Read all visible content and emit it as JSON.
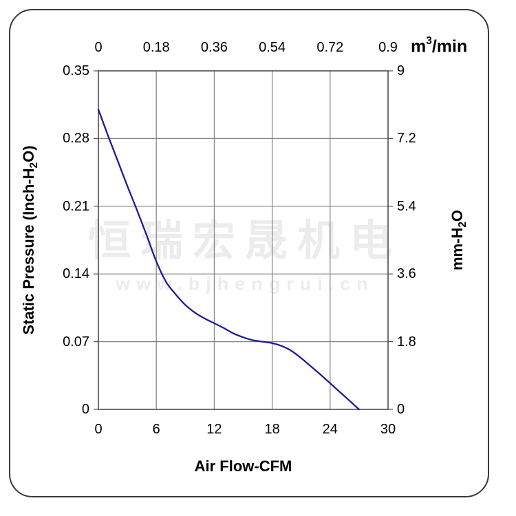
{
  "watermark": {
    "line1": "恒瑞宏晟机电",
    "line2": "www.bjhengrui.cn"
  },
  "axes": {
    "top": {
      "unit_prefix": "m",
      "unit_sup": "3",
      "unit_suffix": "/min",
      "ticks": [
        "0",
        "0.18",
        "0.36",
        "0.54",
        "0.72",
        "0.9"
      ]
    },
    "bottom": {
      "title": "Air Flow-CFM",
      "ticks": [
        "0",
        "6",
        "12",
        "18",
        "24",
        "30"
      ]
    },
    "left": {
      "title_main": "Static Pressure (Inch-H",
      "title_sub": "2",
      "title_end": "O)",
      "ticks": [
        "0.35",
        "0.28",
        "0.21",
        "0.14",
        "0.07",
        "0"
      ]
    },
    "right": {
      "title_main": "mm-H",
      "title_sub": "2",
      "title_end": "O",
      "ticks": [
        "9",
        "7.2",
        "5.4",
        "3.6",
        "1.8",
        "0"
      ]
    }
  },
  "colors": {
    "curve": "#1c1c94",
    "grid": "#808080",
    "plot_border": "#4d4d4d",
    "watermark": "#ececec",
    "text": "#000000"
  },
  "chart_data": {
    "type": "line",
    "title": "Fan performance curve (static pressure vs air flow)",
    "xlabel": "Air Flow-CFM",
    "x_top_label": "m³/min",
    "ylabel_left": "Static Pressure (Inch-H₂O)",
    "ylabel_right": "mm-H₂O",
    "xlim": [
      0,
      30
    ],
    "ylim_left": [
      0,
      0.35
    ],
    "ylim_right": [
      0,
      9
    ],
    "x_ticks_bottom": [
      0,
      6,
      12,
      18,
      24,
      30
    ],
    "x_ticks_top_m3min": [
      0,
      0.18,
      0.36,
      0.54,
      0.72,
      0.9
    ],
    "y_ticks_left_inch": [
      0,
      0.07,
      0.14,
      0.21,
      0.28,
      0.35
    ],
    "y_ticks_right_mm": [
      0,
      1.8,
      3.6,
      5.4,
      7.2,
      9
    ],
    "grid": true,
    "legend": false,
    "series": [
      {
        "name": "static-pressure-curve",
        "color": "#1c1c94",
        "x_cfm": [
          0,
          1,
          2,
          3,
          4,
          5,
          6,
          7,
          8,
          9,
          10,
          11,
          12,
          13,
          14,
          15,
          16,
          17,
          18,
          19,
          20,
          21,
          22,
          23,
          24,
          25,
          26,
          27
        ],
        "y_inch_h2o": [
          0.31,
          0.283,
          0.257,
          0.231,
          0.206,
          0.18,
          0.153,
          0.132,
          0.119,
          0.108,
          0.1,
          0.094,
          0.089,
          0.084,
          0.0785,
          0.0745,
          0.0715,
          0.07,
          0.0685,
          0.0655,
          0.0605,
          0.053,
          0.0445,
          0.036,
          0.027,
          0.018,
          0.009,
          0.0
        ]
      }
    ]
  }
}
